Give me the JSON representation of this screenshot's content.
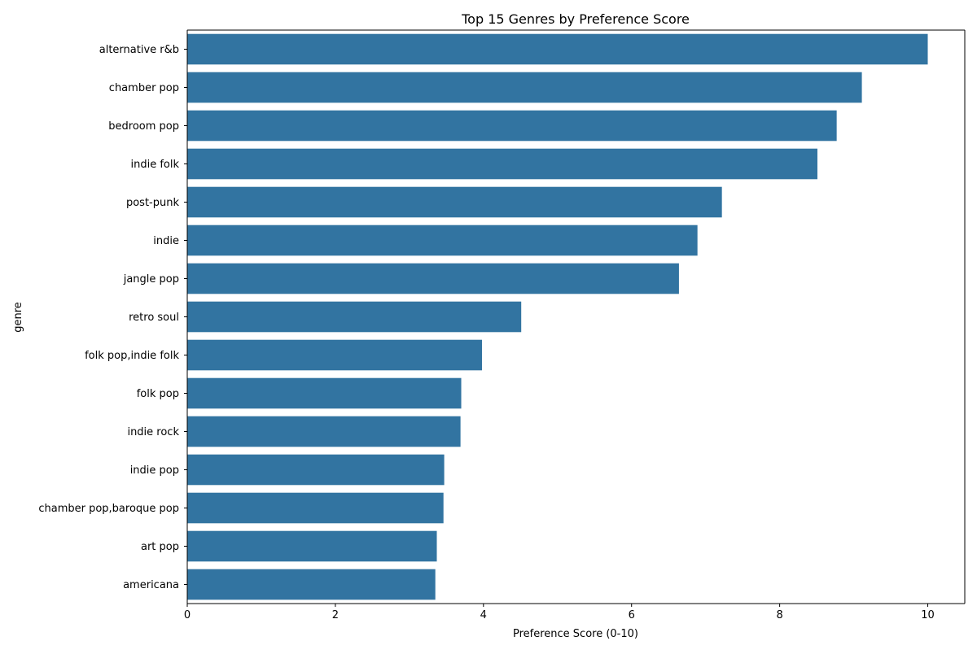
{
  "chart_data": {
    "type": "bar",
    "orientation": "horizontal",
    "title": "Top 15 Genres by Preference Score",
    "xlabel": "Preference Score (0-10)",
    "ylabel": "genre",
    "xlim": [
      0,
      10.5
    ],
    "xticks": [
      0,
      2,
      4,
      6,
      8,
      10
    ],
    "grid": false,
    "legend": "none",
    "bar_color": "#3274a1",
    "categories": [
      "alternative r&b",
      "chamber pop",
      "bedroom pop",
      "indie folk",
      "post-punk",
      "indie",
      "jangle pop",
      "retro soul",
      "folk pop,indie folk",
      "folk pop",
      "indie rock",
      "indie pop",
      "chamber pop,baroque pop",
      "art pop",
      "americana"
    ],
    "values": [
      10.0,
      9.11,
      8.77,
      8.51,
      7.22,
      6.89,
      6.64,
      4.51,
      3.98,
      3.7,
      3.69,
      3.47,
      3.46,
      3.37,
      3.35
    ]
  }
}
